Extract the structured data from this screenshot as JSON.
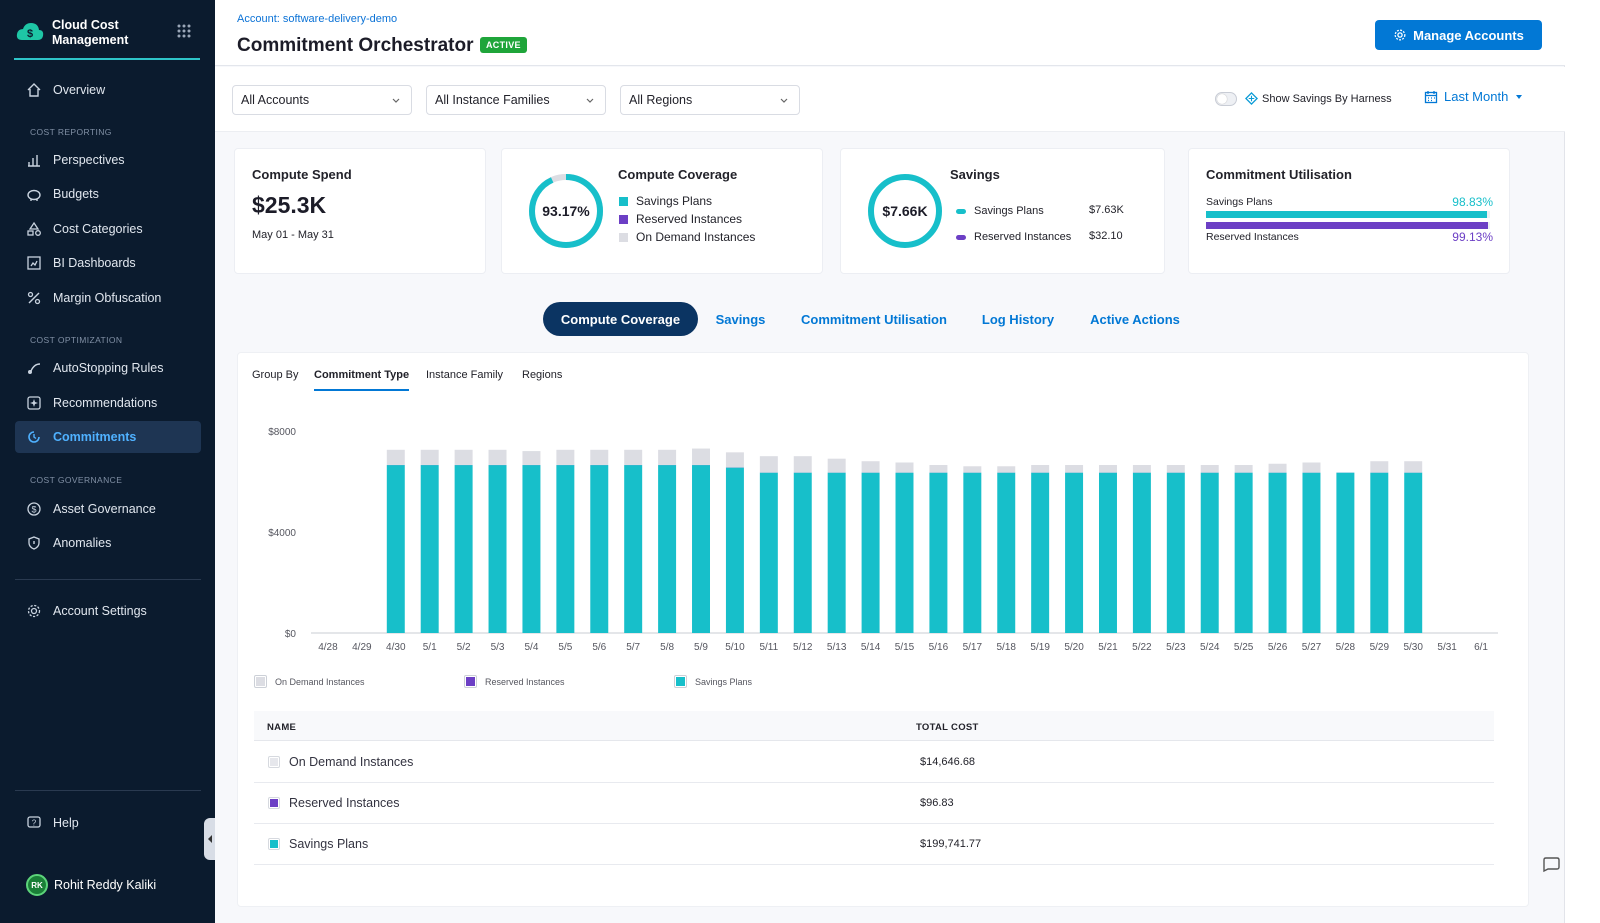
{
  "sidebar": {
    "brand_title": "Cloud Cost Management",
    "items": {
      "overview": "Overview",
      "perspectives": "Perspectives",
      "budgets": "Budgets",
      "cost_categories": "Cost Categories",
      "bi_dashboards": "BI Dashboards",
      "margin_obfuscation": "Margin Obfuscation",
      "autostopping_rules": "AutoStopping Rules",
      "recommendations": "Recommendations",
      "commitments": "Commitments",
      "asset_governance": "Asset Governance",
      "anomalies": "Anomalies",
      "account_settings": "Account Settings",
      "help": "Help"
    },
    "sections": {
      "cost_reporting": "COST REPORTING",
      "cost_optimization": "COST OPTIMIZATION",
      "cost_governance": "COST GOVERNANCE"
    },
    "user": {
      "initials": "RK",
      "name": "Rohit Reddy Kaliki"
    }
  },
  "header": {
    "account": "Account: software-delivery-demo",
    "title": "Commitment Orchestrator",
    "status": "ACTIVE",
    "manage_button": "Manage Accounts"
  },
  "filters": {
    "accounts": "All Accounts",
    "instance_families": "All Instance Families",
    "regions": "All Regions",
    "show_savings_label": "Show Savings By Harness",
    "date_range": "Last Month"
  },
  "kpis": {
    "compute_spend": {
      "title": "Compute Spend",
      "value": "$25.3K",
      "range": "May 01 - May 31"
    },
    "compute_coverage": {
      "title": "Compute Coverage",
      "percent_label": "93.17%",
      "percent": 93.17,
      "legend": [
        "Savings Plans",
        "Reserved Instances",
        "On Demand Instances"
      ]
    },
    "savings": {
      "title": "Savings",
      "total": "$7.66K",
      "rows": [
        {
          "label": "Savings Plans",
          "value": "$7.63K"
        },
        {
          "label": "Reserved Instances",
          "value": "$32.10"
        }
      ]
    },
    "commitment_utilisation": {
      "title": "Commitment Utilisation",
      "rows": [
        {
          "label": "Savings Plans",
          "value": "98.83%",
          "percent": 98.83
        },
        {
          "label": "Reserved Instances",
          "value": "99.13%",
          "percent": 99.13
        }
      ]
    }
  },
  "tabs": [
    "Compute Coverage",
    "Savings",
    "Commitment Utilisation",
    "Log History",
    "Active Actions"
  ],
  "group_by": {
    "label": "Group By",
    "options": [
      "Commitment Type",
      "Instance Family",
      "Regions"
    ]
  },
  "colors": {
    "savings_plans": "#17bfca",
    "reserved_instances": "#6c3fc5",
    "on_demand": "#dcdde3",
    "accent": "#0278d5",
    "sidebar_bg": "#0b1b2e"
  },
  "chart_data": {
    "type": "bar",
    "stacked": true,
    "categories": [
      "4/28",
      "4/29",
      "4/30",
      "5/1",
      "5/2",
      "5/3",
      "5/4",
      "5/5",
      "5/6",
      "5/7",
      "5/8",
      "5/9",
      "5/10",
      "5/11",
      "5/12",
      "5/13",
      "5/14",
      "5/15",
      "5/16",
      "5/17",
      "5/18",
      "5/19",
      "5/20",
      "5/21",
      "5/22",
      "5/23",
      "5/24",
      "5/25",
      "5/26",
      "5/27",
      "5/28",
      "5/29",
      "5/30",
      "5/31",
      "6/1"
    ],
    "series": [
      {
        "name": "Savings Plans",
        "values": [
          0,
          0,
          6650,
          6650,
          6650,
          6650,
          6650,
          6650,
          6650,
          6650,
          6650,
          6650,
          6550,
          6350,
          6350,
          6350,
          6350,
          6350,
          6350,
          6350,
          6350,
          6350,
          6350,
          6350,
          6350,
          6350,
          6350,
          6350,
          6350,
          6350,
          6350,
          6350,
          6350,
          0,
          0
        ]
      },
      {
        "name": "Reserved Instances",
        "values": [
          0,
          0,
          5,
          5,
          5,
          5,
          5,
          5,
          5,
          5,
          5,
          5,
          5,
          3,
          3,
          3,
          3,
          3,
          3,
          3,
          3,
          3,
          3,
          3,
          3,
          3,
          3,
          3,
          3,
          3,
          3,
          3,
          3,
          0,
          0
        ]
      },
      {
        "name": "On Demand Instances",
        "values": [
          0,
          0,
          600,
          600,
          600,
          600,
          550,
          600,
          600,
          600,
          600,
          650,
          600,
          650,
          650,
          550,
          450,
          400,
          300,
          250,
          250,
          300,
          300,
          300,
          300,
          300,
          300,
          300,
          350,
          400,
          0,
          450,
          450,
          0,
          0
        ]
      }
    ],
    "yticks": [
      "$0",
      "$4000",
      "$8000"
    ],
    "ylim": [
      0,
      8000
    ],
    "legend": [
      "On Demand Instances",
      "Reserved Instances",
      "Savings Plans"
    ],
    "grid": false
  },
  "table": {
    "columns": [
      "NAME",
      "TOTAL COST"
    ],
    "rows": [
      {
        "name": "On Demand Instances",
        "cost": "$14,646.68"
      },
      {
        "name": "Reserved Instances",
        "cost": "$96.83"
      },
      {
        "name": "Savings Plans",
        "cost": "$199,741.77"
      }
    ]
  }
}
